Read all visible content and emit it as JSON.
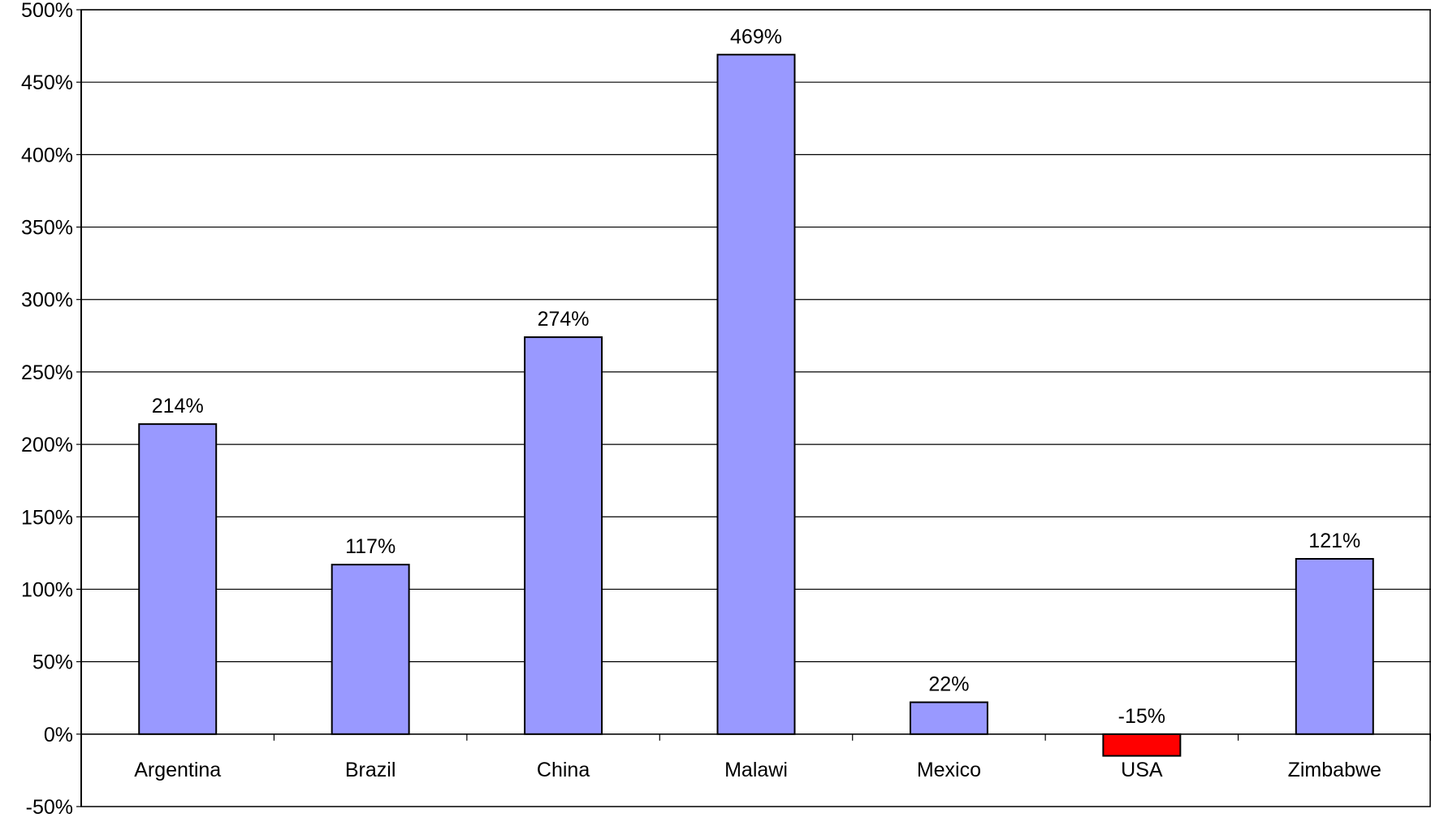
{
  "chart_data": {
    "type": "bar",
    "categories": [
      "Argentina",
      "Brazil",
      "China",
      "Malawi",
      "Mexico",
      "USA",
      "Zimbabwe"
    ],
    "values": [
      214,
      117,
      274,
      469,
      22,
      -15,
      121
    ],
    "data_labels": [
      "214%",
      "117%",
      "274%",
      "469%",
      "22%",
      "-15%",
      "121%"
    ],
    "ylim": [
      -50,
      500
    ],
    "y_ticks": [
      -50,
      0,
      50,
      100,
      150,
      200,
      250,
      300,
      350,
      400,
      450,
      500
    ],
    "y_tick_labels": [
      "-50%",
      "0%",
      "50%",
      "100%",
      "150%",
      "200%",
      "250%",
      "300%",
      "350%",
      "400%",
      "450%",
      "500%"
    ],
    "grid": true,
    "legend": false,
    "title": "",
    "xlabel": "",
    "ylabel": "",
    "colors": {
      "positive": "#9999ff",
      "negative": "#ff0000",
      "outline": "#000000",
      "grid": "#000000"
    }
  }
}
